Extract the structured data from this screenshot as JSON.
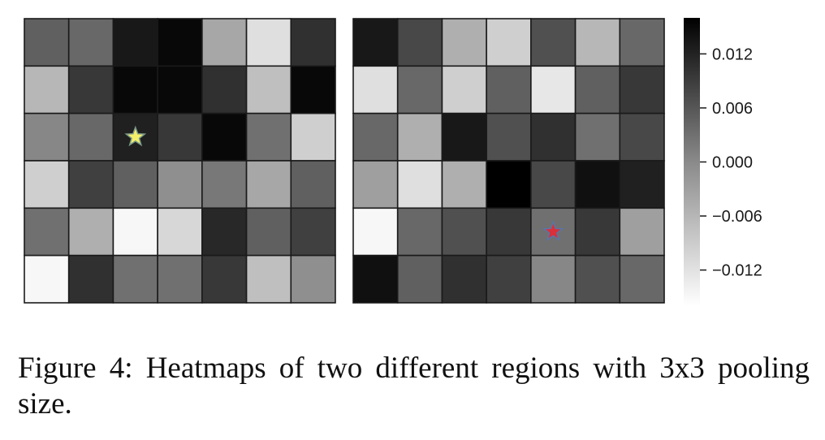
{
  "chart_data": [
    {
      "type": "heatmap",
      "panel": "left",
      "rows": 6,
      "cols": 7,
      "values": [
        [
          0.004,
          0.003,
          0.013,
          0.015,
          -0.005,
          -0.012,
          0.01
        ],
        [
          -0.007,
          0.009,
          0.015,
          0.015,
          0.01,
          -0.008,
          0.015
        ],
        [
          -0.001,
          0.003,
          0.012,
          0.009,
          0.015,
          0.002,
          -0.01
        ],
        [
          -0.01,
          0.008,
          0.004,
          -0.002,
          0.001,
          -0.005,
          0.004
        ],
        [
          0.002,
          -0.006,
          -0.015,
          -0.011,
          0.011,
          0.004,
          0.008
        ],
        [
          -0.015,
          0.01,
          0.002,
          0.002,
          0.009,
          -0.008,
          -0.002
        ]
      ],
      "marker": {
        "shape": "star",
        "color": "#f4f06a",
        "row": 2,
        "col": 2
      }
    },
    {
      "type": "heatmap",
      "panel": "right",
      "rows": 6,
      "cols": 7,
      "values": [
        [
          0.013,
          0.007,
          -0.006,
          -0.01,
          0.006,
          -0.007,
          0.003
        ],
        [
          -0.012,
          0.003,
          -0.01,
          0.004,
          -0.013,
          0.004,
          0.009
        ],
        [
          0.003,
          -0.006,
          0.013,
          0.006,
          0.01,
          0.002,
          0.007
        ],
        [
          -0.004,
          -0.012,
          -0.006,
          0.016,
          0.007,
          0.014,
          0.012
        ],
        [
          -0.015,
          0.003,
          0.006,
          0.009,
          0.002,
          0.009,
          -0.004
        ],
        [
          0.014,
          0.004,
          0.01,
          0.008,
          -0.001,
          0.006,
          0.003
        ]
      ],
      "marker": {
        "shape": "star",
        "color": "#d9303a",
        "row": 4,
        "col": 4
      }
    }
  ],
  "colorbar": {
    "min": -0.016,
    "max": 0.016,
    "low_color": "#ffffff",
    "high_color": "#000000",
    "ticks": [
      0.012,
      0.006,
      0.0,
      -0.006,
      -0.012
    ],
    "tick_labels": [
      "0.012",
      "0.006",
      "0.000",
      "−0.006",
      "−0.012"
    ]
  },
  "caption": "Figure 4: Heatmaps of two different regions with 3x3 pool­ing size."
}
